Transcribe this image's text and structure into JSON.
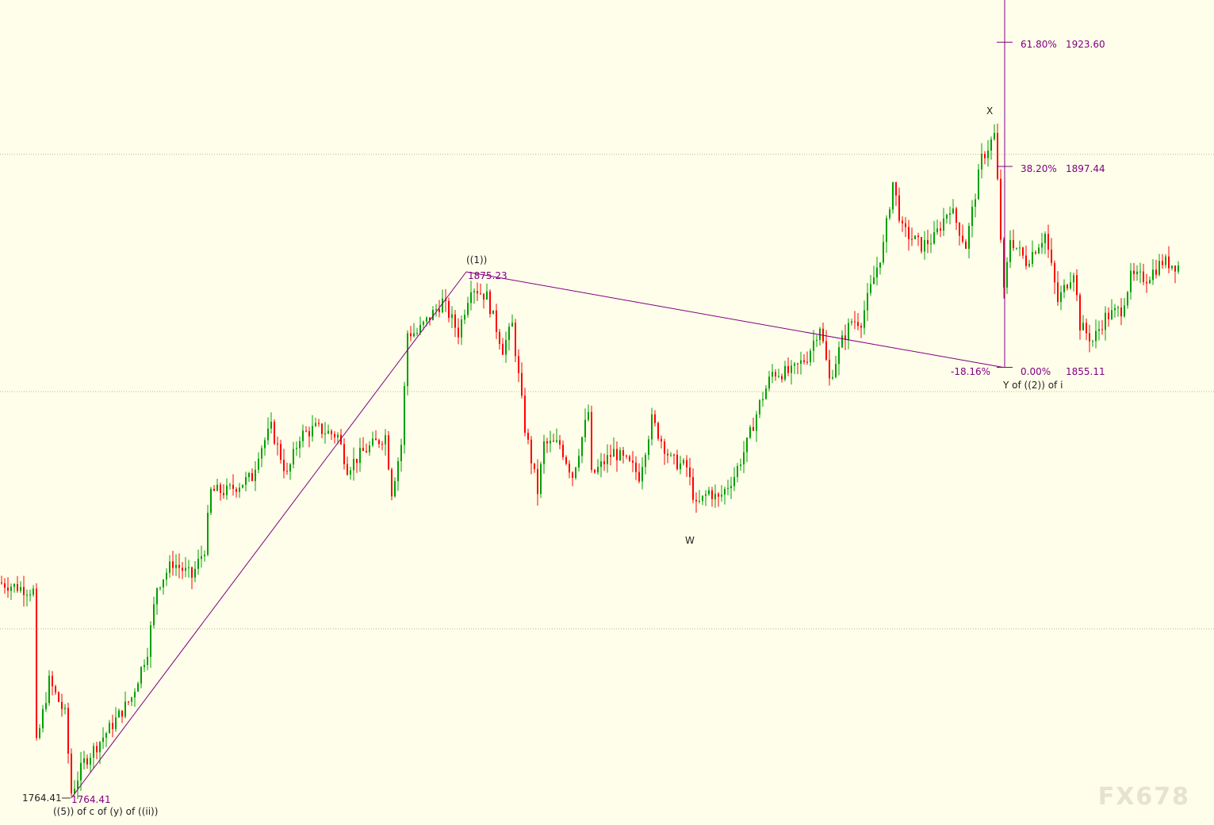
{
  "chart_data": {
    "type": "candlestick",
    "title": "",
    "xlabel": "",
    "ylabel": "",
    "ylim": [
      1757,
      1932
    ],
    "grid_levels": [
      1800,
      1850,
      1900
    ],
    "colors": {
      "up": "#00a000",
      "down": "#ff0000",
      "annotation": "#800080",
      "background": "#fffeea"
    },
    "price_path": [
      [
        0,
        1809.8
      ],
      [
        11,
        1808
      ],
      [
        12,
        1775.6
      ],
      [
        16,
        1789
      ],
      [
        21,
        1782
      ],
      [
        23,
        1765.5
      ],
      [
        27,
        1772
      ],
      [
        35,
        1779
      ],
      [
        42,
        1785.6
      ],
      [
        47,
        1795.6
      ],
      [
        50,
        1809
      ],
      [
        55,
        1814
      ],
      [
        61,
        1811
      ],
      [
        65,
        1817
      ],
      [
        67,
        1829
      ],
      [
        72,
        1829
      ],
      [
        80,
        1832
      ],
      [
        82,
        1837.3
      ],
      [
        86,
        1842.3
      ],
      [
        91,
        1832.3
      ],
      [
        95,
        1840.7
      ],
      [
        100,
        1842.3
      ],
      [
        107,
        1840.7
      ],
      [
        110,
        1834
      ],
      [
        115,
        1837.3
      ],
      [
        122,
        1840.7
      ],
      [
        124,
        1829
      ],
      [
        127,
        1838.9
      ],
      [
        129,
        1862.4
      ],
      [
        132,
        1862.4
      ],
      [
        140,
        1869
      ],
      [
        145,
        1862.4
      ],
      [
        149,
        1872.4
      ],
      [
        154,
        1870
      ],
      [
        159,
        1859
      ],
      [
        162,
        1864
      ],
      [
        166,
        1842.3
      ],
      [
        170,
        1829
      ],
      [
        172,
        1838.9
      ],
      [
        177,
        1838.9
      ],
      [
        181,
        1832.3
      ],
      [
        186,
        1845.7
      ],
      [
        187,
        1832.3
      ],
      [
        194,
        1837.3
      ],
      [
        200,
        1834
      ],
      [
        202,
        1832.3
      ],
      [
        206,
        1844
      ],
      [
        212,
        1835.6
      ],
      [
        217,
        1834
      ],
      [
        220,
        1825.6
      ],
      [
        224,
        1829
      ],
      [
        227,
        1827.3
      ],
      [
        232,
        1832.3
      ],
      [
        236,
        1839
      ],
      [
        240,
        1847.4
      ],
      [
        244,
        1854
      ],
      [
        250,
        1854
      ],
      [
        255,
        1857.4
      ],
      [
        259,
        1864
      ],
      [
        262,
        1852.4
      ],
      [
        266,
        1860.7
      ],
      [
        269,
        1864.9
      ],
      [
        272,
        1864.9
      ],
      [
        276,
        1874
      ],
      [
        279,
        1880.7
      ],
      [
        282,
        1894.1
      ],
      [
        285,
        1884
      ],
      [
        291,
        1880.7
      ],
      [
        295,
        1882.3
      ],
      [
        300,
        1889
      ],
      [
        305,
        1880.7
      ],
      [
        310,
        1899
      ],
      [
        314,
        1904
      ],
      [
        315,
        1894
      ],
      [
        317,
        1870.7
      ],
      [
        319,
        1882.3
      ],
      [
        324,
        1877.4
      ],
      [
        330,
        1883.2
      ],
      [
        334,
        1869
      ],
      [
        339,
        1875.7
      ],
      [
        341,
        1864
      ],
      [
        345,
        1860.7
      ],
      [
        349,
        1865.7
      ],
      [
        354,
        1867.3
      ],
      [
        357,
        1874
      ],
      [
        362,
        1874
      ],
      [
        367,
        1877.4
      ],
      [
        372,
        1876.5
      ]
    ],
    "wave_lines": [
      {
        "from": 1764.41,
        "to": 1875.23
      },
      {
        "from": 1875.23,
        "to": 1855.11
      }
    ],
    "fibonacci": [
      {
        "ratio": "61.80%",
        "price": "1923.60",
        "value": 1923.6
      },
      {
        "ratio": "38.20%",
        "price": "1897.44",
        "value": 1897.44
      },
      {
        "ratio": "0.00%",
        "price": "1855.11",
        "value": 1855.11
      }
    ],
    "annotations": {
      "low_price_axis": "1764.41",
      "low_price": "1764.41",
      "low_label": "((5)) of c of (y) of ((ii))",
      "high_label": "((1))",
      "high_price": "1875.23",
      "w_label": "W",
      "x_label": "X",
      "y_label": "Y of ((2)) of i",
      "retrace_pct": "-18.16%"
    }
  },
  "watermark": "FX678"
}
